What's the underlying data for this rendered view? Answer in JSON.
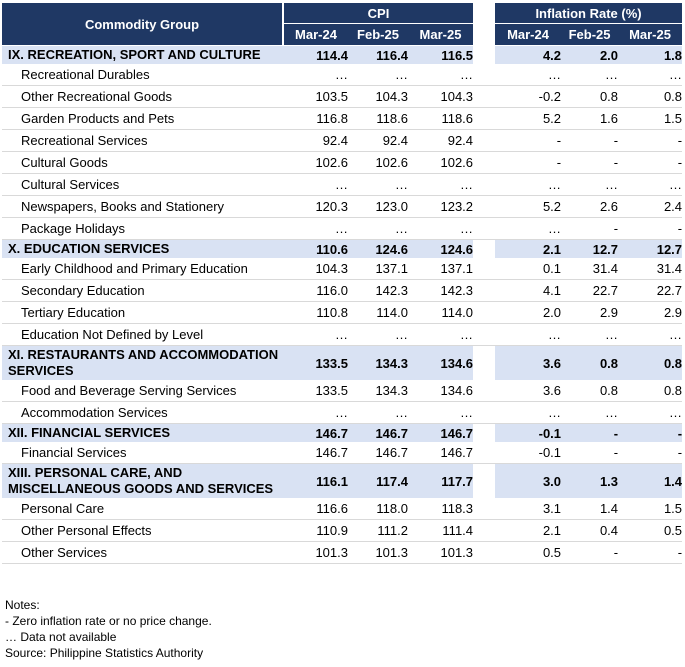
{
  "header": {
    "group_label": "Commodity Group",
    "cpi_label": "CPI",
    "inflation_label": "Inflation Rate (%)",
    "cpi_cols": [
      "Mar-24",
      "Feb-25",
      "Mar-25"
    ],
    "infl_cols": [
      "Mar-24",
      "Feb-25",
      "Mar-25"
    ]
  },
  "rows": [
    {
      "type": "major",
      "label": "IX. RECREATION, SPORT AND CULTURE",
      "cpi": [
        "114.4",
        "116.4",
        "116.5"
      ],
      "infl": [
        "4.2",
        "2.0",
        "1.8"
      ]
    },
    {
      "type": "sub",
      "label": "Recreational Durables",
      "cpi": [
        "…",
        "…",
        "…"
      ],
      "infl": [
        "…",
        "…",
        "…"
      ]
    },
    {
      "type": "sub",
      "label": "Other Recreational Goods",
      "cpi": [
        "103.5",
        "104.3",
        "104.3"
      ],
      "infl": [
        "-0.2",
        "0.8",
        "0.8"
      ]
    },
    {
      "type": "sub",
      "label": "Garden Products and Pets",
      "cpi": [
        "116.8",
        "118.6",
        "118.6"
      ],
      "infl": [
        "5.2",
        "1.6",
        "1.5"
      ]
    },
    {
      "type": "sub",
      "label": "Recreational Services",
      "cpi": [
        "92.4",
        "92.4",
        "92.4"
      ],
      "infl": [
        "-",
        "-",
        "-"
      ]
    },
    {
      "type": "sub",
      "label": "Cultural Goods",
      "cpi": [
        "102.6",
        "102.6",
        "102.6"
      ],
      "infl": [
        "-",
        "-",
        "-"
      ]
    },
    {
      "type": "sub",
      "label": "Cultural Services",
      "cpi": [
        "…",
        "…",
        "…"
      ],
      "infl": [
        "…",
        "…",
        "…"
      ]
    },
    {
      "type": "sub",
      "label": "Newspapers, Books and Stationery",
      "cpi": [
        "120.3",
        "123.0",
        "123.2"
      ],
      "infl": [
        "5.2",
        "2.6",
        "2.4"
      ]
    },
    {
      "type": "sub",
      "label": "Package Holidays",
      "cpi": [
        "…",
        "…",
        "…"
      ],
      "infl": [
        "…",
        "-",
        "-"
      ]
    },
    {
      "type": "major",
      "label": "X. EDUCATION SERVICES",
      "cpi": [
        "110.6",
        "124.6",
        "124.6"
      ],
      "infl": [
        "2.1",
        "12.7",
        "12.7"
      ]
    },
    {
      "type": "sub",
      "label": "Early Childhood and Primary  Education",
      "cpi": [
        "104.3",
        "137.1",
        "137.1"
      ],
      "infl": [
        "0.1",
        "31.4",
        "31.4"
      ]
    },
    {
      "type": "sub",
      "label": "Secondary Education",
      "cpi": [
        "116.0",
        "142.3",
        "142.3"
      ],
      "infl": [
        "4.1",
        "22.7",
        "22.7"
      ]
    },
    {
      "type": "sub",
      "label": "Tertiary Education",
      "cpi": [
        "110.8",
        "114.0",
        "114.0"
      ],
      "infl": [
        "2.0",
        "2.9",
        "2.9"
      ]
    },
    {
      "type": "sub",
      "label": "Education Not Defined by Level",
      "cpi": [
        "…",
        "…",
        "…"
      ],
      "infl": [
        "…",
        "…",
        "…"
      ]
    },
    {
      "type": "major",
      "label": "XI. RESTAURANTS AND ACCOMMODATION SERVICES",
      "cpi": [
        "133.5",
        "134.3",
        "134.6"
      ],
      "infl": [
        "3.6",
        "0.8",
        "0.8"
      ]
    },
    {
      "type": "sub",
      "label": "Food and Beverage Serving Services",
      "cpi": [
        "133.5",
        "134.3",
        "134.6"
      ],
      "infl": [
        "3.6",
        "0.8",
        "0.8"
      ]
    },
    {
      "type": "sub",
      "label": "Accommodation Services",
      "cpi": [
        "…",
        "…",
        "…"
      ],
      "infl": [
        "…",
        "…",
        "…"
      ]
    },
    {
      "type": "major",
      "label": "XII. FINANCIAL SERVICES",
      "cpi": [
        "146.7",
        "146.7",
        "146.7"
      ],
      "infl": [
        "-0.1",
        "-",
        "-"
      ]
    },
    {
      "type": "sub",
      "label": "Financial Services",
      "cpi": [
        "146.7",
        "146.7",
        "146.7"
      ],
      "infl": [
        "-0.1",
        "-",
        "-"
      ]
    },
    {
      "type": "major",
      "label": "XIII. PERSONAL CARE, AND MISCELLANEOUS GOODS AND SERVICES",
      "cpi": [
        "116.1",
        "117.4",
        "117.7"
      ],
      "infl": [
        "3.0",
        "1.3",
        "1.4"
      ]
    },
    {
      "type": "sub",
      "label": "Personal Care",
      "cpi": [
        "116.6",
        "118.0",
        "118.3"
      ],
      "infl": [
        "3.1",
        "1.4",
        "1.5"
      ]
    },
    {
      "type": "sub",
      "label": "Other Personal Effects",
      "cpi": [
        "110.9",
        "111.2",
        "111.4"
      ],
      "infl": [
        "2.1",
        "0.4",
        "0.5"
      ]
    },
    {
      "type": "sub",
      "label": "Other Services",
      "cpi": [
        "101.3",
        "101.3",
        "101.3"
      ],
      "infl": [
        "0.5",
        "-",
        "-"
      ]
    }
  ],
  "notes": [
    "Notes:",
    "- Zero inflation rate or no price change.",
    "… Data not available",
    "Source: Philippine Statistics Authority"
  ]
}
